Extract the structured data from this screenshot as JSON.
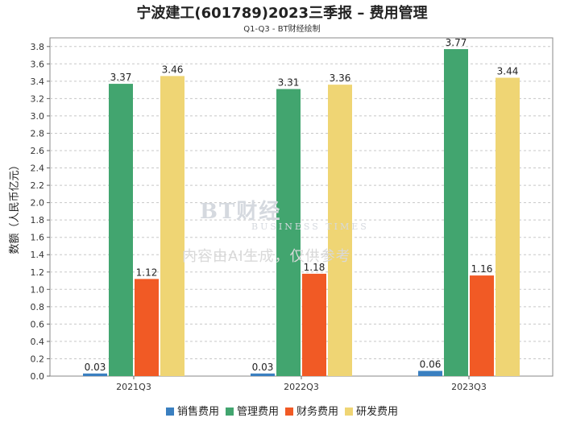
{
  "title": "宁波建工(601789)2023三季报 – 费用管理",
  "subtitle": "Q1-Q3 - BT财经绘制",
  "watermark": {
    "logo": "BT财经",
    "sub": "BUSINESS TIMES",
    "text": "内容由AI生成，仅供参考"
  },
  "chart_data": {
    "type": "bar",
    "categories": [
      "2021Q3",
      "2022Q3",
      "2023Q3"
    ],
    "ylabel": "数额（人民币亿元）",
    "ylim": [
      0,
      3.9
    ],
    "yticks": [
      "0.0",
      "0.2",
      "0.4",
      "0.6",
      "0.8",
      "1.0",
      "1.2",
      "1.4",
      "1.6",
      "1.8",
      "2.0",
      "2.2",
      "2.4",
      "2.6",
      "2.8",
      "3.0",
      "3.2",
      "3.4",
      "3.6",
      "3.8"
    ],
    "grid": true,
    "legend_position": "bottom",
    "series": [
      {
        "name": "销售费用",
        "color": "#3a7fc0",
        "values": [
          0.03,
          0.03,
          0.06
        ],
        "labels": [
          "0.03",
          "0.03",
          "0.06"
        ]
      },
      {
        "name": "管理费用",
        "color": "#42a56f",
        "values": [
          3.37,
          3.31,
          3.77
        ],
        "labels": [
          "3.37",
          "3.31",
          "3.77"
        ]
      },
      {
        "name": "财务费用",
        "color": "#f15a25",
        "values": [
          1.12,
          1.18,
          1.16
        ],
        "labels": [
          "1.12",
          "1.18",
          "1.16"
        ]
      },
      {
        "name": "研发费用",
        "color": "#efd574",
        "values": [
          3.46,
          3.36,
          3.44
        ],
        "labels": [
          "3.46",
          "3.36",
          "3.44"
        ]
      }
    ]
  }
}
